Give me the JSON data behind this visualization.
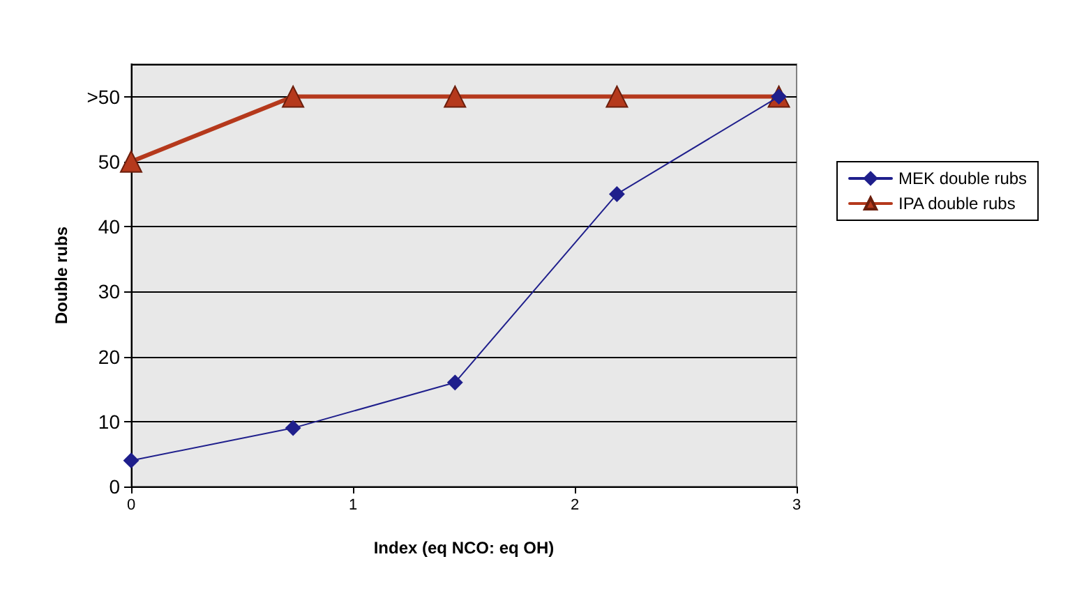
{
  "chart_data": {
    "type": "line",
    "xlabel": "Index (eq NCO: eq OH)",
    "ylabel": "Double rubs",
    "x": [
      0,
      0.73,
      1.46,
      2.19,
      2.92
    ],
    "xlim": [
      0,
      3
    ],
    "xticks": [
      0,
      1,
      2,
      3
    ],
    "ylim": [
      0,
      65
    ],
    "yticks": [
      0,
      10,
      20,
      30,
      40,
      {
        "value": 50,
        "label": "50"
      },
      {
        "value": 60,
        "label": ">50"
      }
    ],
    "grid": "y",
    "legend": "right",
    "series": [
      {
        "name": "MEK double rubs",
        "color": "#1f1f8c",
        "marker": "diamond",
        "values": [
          4,
          9,
          16,
          45,
          60
        ]
      },
      {
        "name": "IPA double rubs",
        "color": "#b5391c",
        "marker": "triangle",
        "values": [
          50,
          60,
          60,
          60,
          60
        ]
      }
    ]
  }
}
